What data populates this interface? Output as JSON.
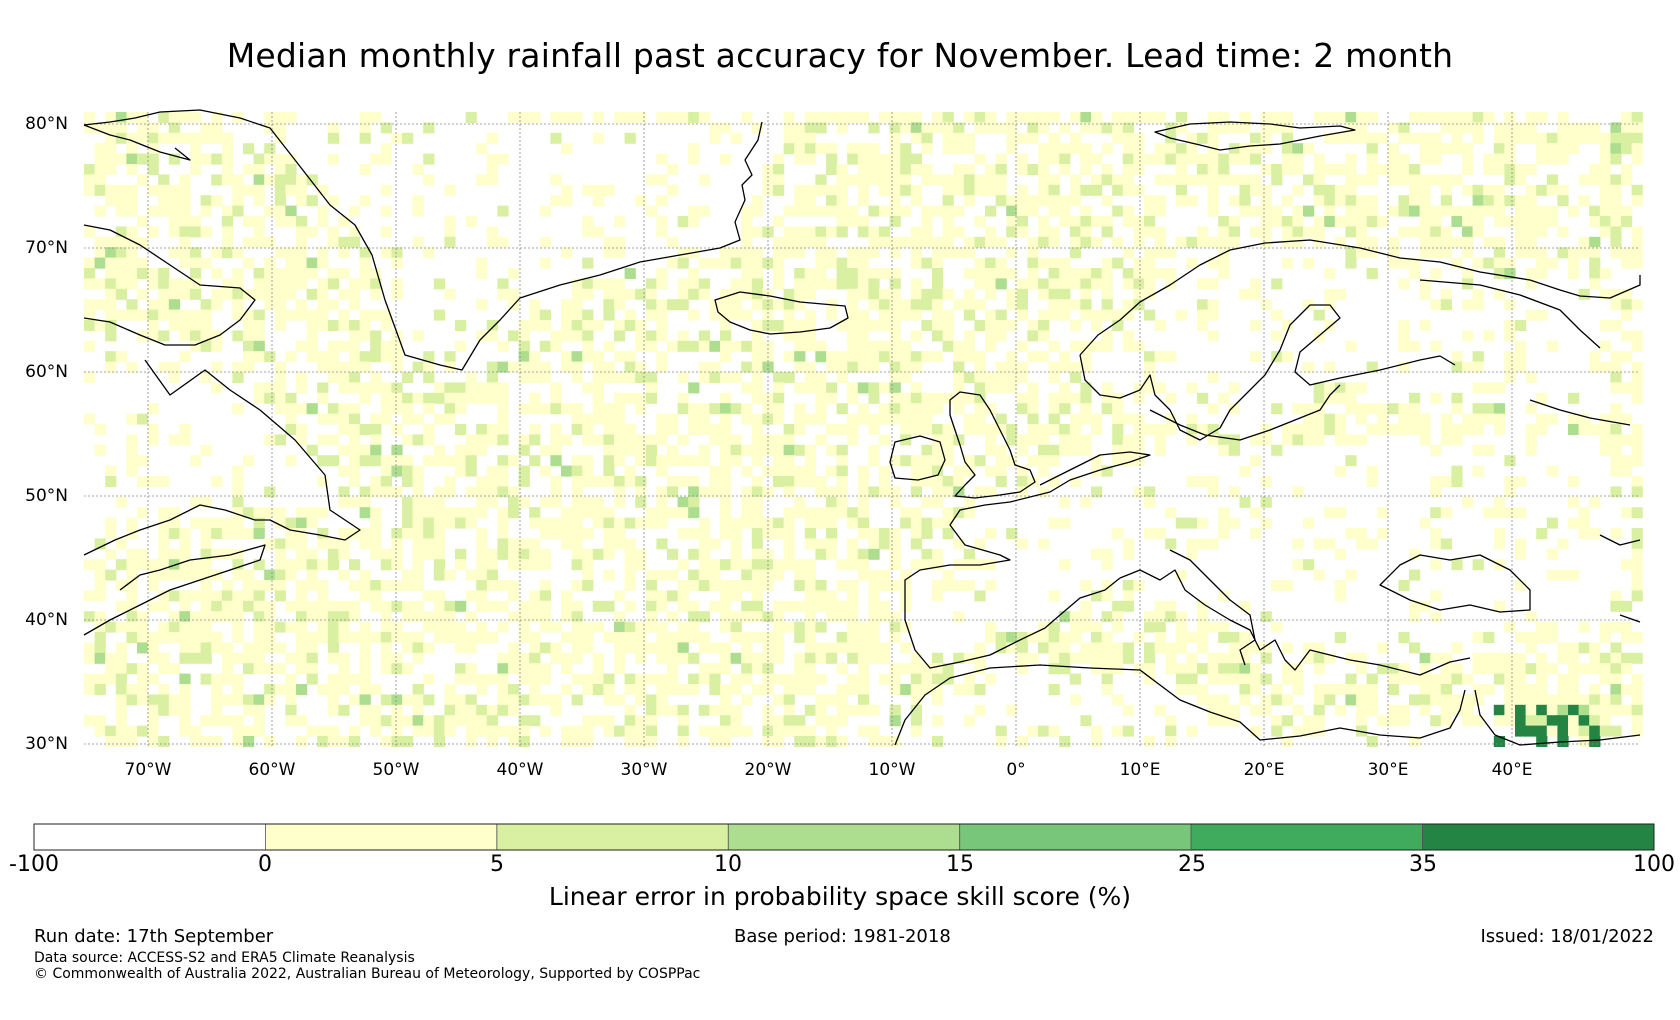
{
  "title": "Median monthly rainfall past accuracy for November. Lead time: 2 month",
  "map": {
    "region": "North Atlantic and Europe",
    "lon_range": [
      -75,
      50
    ],
    "lat_range": [
      30,
      81
    ],
    "lat_ticks": [
      "80°N",
      "70°N",
      "60°N",
      "50°N",
      "40°N",
      "30°N"
    ],
    "lon_ticks": [
      "70°W",
      "60°W",
      "50°W",
      "40°W",
      "30°W",
      "20°W",
      "10°W",
      "0°",
      "10°E",
      "20°E",
      "30°E",
      "40°E"
    ]
  },
  "colorbar": {
    "ticks": [
      "-100",
      "0",
      "5",
      "10",
      "15",
      "25",
      "35",
      "100"
    ],
    "colors": [
      "#ffffff",
      "#ffffcc",
      "#d9f0a3",
      "#addd8e",
      "#78c679",
      "#41ab5d",
      "#238443"
    ],
    "label": "Linear error in probability space skill score (%)"
  },
  "footer": {
    "run_date": "Run date: 17th September",
    "base_period": "Base period: 1981-2018",
    "issued": "Issued: 18/01/2022",
    "data_source": "Data source: ACCESS-S2 and ERA5 Climate Reanalysis",
    "copyright": "© Commonwealth of Australia 2022, Australian Bureau of Meteorology, Supported by COSPPac"
  }
}
